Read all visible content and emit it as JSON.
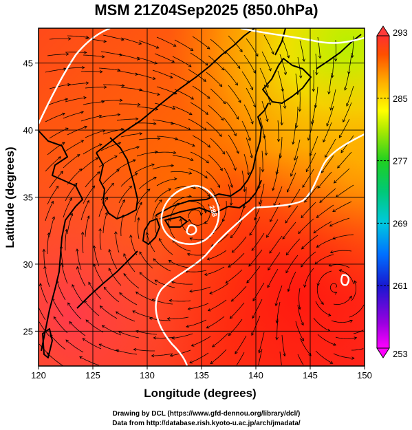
{
  "title": "MSM 21Z04Sep2025 (850.0hPa)",
  "x_label": "Longitude (degrees)",
  "y_label": "Latitude  (degrees)",
  "credit_line1": "Drawing by DCL (https://www.gfd-dennou.org/library/dcl/)",
  "credit_line2": "Data from http://database.rish.kyoto-u.ac.jp/arch/jmadata/",
  "chart_data": {
    "type": "heatmap",
    "field": "temperature (shaded) with wind streamlines",
    "x_ticks": [
      "120",
      "125",
      "130",
      "135",
      "140",
      "145",
      "150"
    ],
    "y_ticks": [
      "25",
      "30",
      "35",
      "40",
      "45"
    ],
    "xlim": [
      120,
      150
    ],
    "ylim": [
      22.4,
      47.6
    ],
    "colorbar": {
      "range": [
        253,
        293
      ],
      "tick_labels": [
        "293",
        "285",
        "277",
        "269",
        "261",
        "253"
      ],
      "colors": [
        "#ff00ff",
        "#7a00d8",
        "#1010d0",
        "#0088ff",
        "#00cccc",
        "#00d050",
        "#80e000",
        "#ffff00",
        "#ffc000",
        "#ff7000",
        "#ff2000",
        "#ff4060"
      ]
    },
    "contour_labels": [
      "288"
    ],
    "land_color": "#000000",
    "contour_color": "#ffffff",
    "streamline_color": "#000000"
  }
}
